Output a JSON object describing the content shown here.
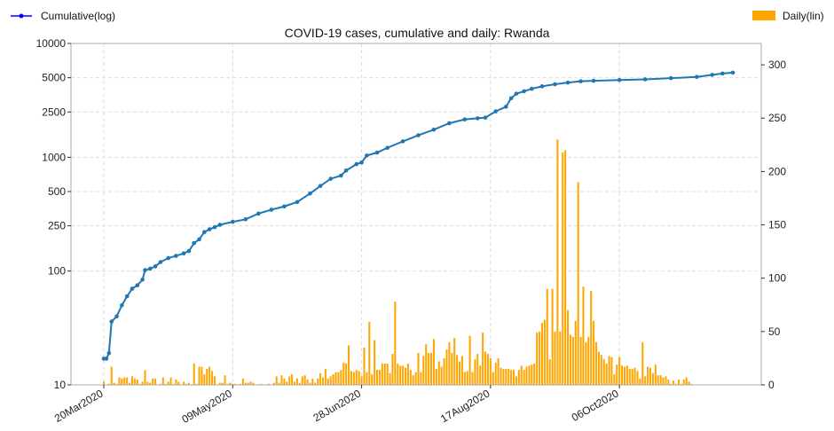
{
  "chart_data": {
    "type": "bar+line",
    "title": "COVID-19 cases, cumulative and daily: Rwanda",
    "legend": {
      "left": "Cumulative(log)",
      "right": "Daily(lin)",
      "placement": "top"
    },
    "colors": {
      "cumulative": "#1f77b4",
      "legend_line": "#0000ff",
      "daily": "#ffa500",
      "grid": "#dddddd"
    },
    "x_range_days": [
      0,
      244
    ],
    "x_tick_labels": [
      "20Mar2020",
      "09May2020",
      "28Jun2020",
      "17Aug2020",
      "06Oct2020"
    ],
    "x_tick_days": [
      0,
      50,
      100,
      150,
      200
    ],
    "y_left": {
      "scale": "log",
      "ylim": [
        10,
        10000
      ],
      "tick_values": [
        10,
        100,
        250,
        500,
        1000,
        2500,
        5000,
        10000
      ],
      "tick_labels": [
        "10",
        "100",
        "250",
        "500",
        "1000",
        "2500",
        "5000",
        "10000"
      ]
    },
    "y_right": {
      "scale": "linear",
      "ylim": [
        0,
        320
      ],
      "tick_values": [
        0,
        50,
        100,
        150,
        200,
        250,
        300
      ],
      "tick_labels": [
        "0",
        "50",
        "100",
        "150",
        "200",
        "250",
        "300"
      ]
    },
    "cumulative_points": [
      [
        0,
        17
      ],
      [
        1,
        17
      ],
      [
        2,
        19
      ],
      [
        3,
        36
      ],
      [
        5,
        40
      ],
      [
        7,
        50
      ],
      [
        9,
        60
      ],
      [
        11,
        70
      ],
      [
        13,
        75
      ],
      [
        15,
        84
      ],
      [
        16,
        102
      ],
      [
        18,
        105
      ],
      [
        20,
        110
      ],
      [
        22,
        120
      ],
      [
        25,
        130
      ],
      [
        28,
        136
      ],
      [
        31,
        143
      ],
      [
        33,
        150
      ],
      [
        35,
        176
      ],
      [
        37,
        190
      ],
      [
        39,
        220
      ],
      [
        41,
        233
      ],
      [
        43,
        243
      ],
      [
        45,
        255
      ],
      [
        50,
        271
      ],
      [
        55,
        285
      ],
      [
        60,
        320
      ],
      [
        65,
        346
      ],
      [
        70,
        370
      ],
      [
        75,
        404
      ],
      [
        80,
        480
      ],
      [
        84,
        560
      ],
      [
        88,
        647
      ],
      [
        92,
        690
      ],
      [
        94,
        765
      ],
      [
        98,
        870
      ],
      [
        100,
        900
      ],
      [
        102,
        1035
      ],
      [
        106,
        1100
      ],
      [
        110,
        1210
      ],
      [
        116,
        1380
      ],
      [
        122,
        1560
      ],
      [
        128,
        1750
      ],
      [
        134,
        1990
      ],
      [
        140,
        2150
      ],
      [
        145,
        2200
      ],
      [
        148,
        2230
      ],
      [
        152,
        2530
      ],
      [
        156,
        2780
      ],
      [
        158,
        3300
      ],
      [
        160,
        3620
      ],
      [
        163,
        3800
      ],
      [
        166,
        4000
      ],
      [
        170,
        4200
      ],
      [
        175,
        4380
      ],
      [
        180,
        4530
      ],
      [
        185,
        4650
      ],
      [
        190,
        4700
      ],
      [
        200,
        4770
      ],
      [
        210,
        4840
      ],
      [
        220,
        4960
      ],
      [
        230,
        5080
      ],
      [
        236,
        5300
      ],
      [
        240,
        5440
      ],
      [
        244,
        5540
      ]
    ],
    "daily_values": [
      3,
      0,
      1,
      17,
      2,
      1,
      7,
      6,
      7,
      7,
      2,
      8,
      6,
      5,
      1,
      3,
      14,
      3,
      2,
      6,
      6,
      0,
      1,
      7,
      1,
      3,
      7,
      1,
      5,
      3,
      0,
      3,
      1,
      2,
      0,
      20,
      1,
      17,
      17,
      10,
      15,
      17,
      13,
      8,
      0,
      2,
      2,
      9,
      1,
      2,
      1,
      1,
      0,
      1,
      6,
      2,
      2,
      3,
      2,
      0,
      0,
      1,
      0,
      0,
      1,
      0,
      2,
      8,
      2,
      9,
      6,
      3,
      8,
      10,
      3,
      6,
      2,
      8,
      9,
      5,
      2,
      6,
      2,
      6,
      11,
      7,
      15,
      6,
      8,
      10,
      12,
      12,
      14,
      21,
      20,
      37,
      13,
      12,
      14,
      13,
      8,
      35,
      12,
      59,
      10,
      42,
      14,
      14,
      20,
      20,
      20,
      11,
      29,
      78,
      20,
      18,
      18,
      16,
      20,
      14,
      9,
      12,
      30,
      12,
      27,
      38,
      30,
      30,
      43,
      15,
      22,
      17,
      25,
      33,
      40,
      30,
      44,
      28,
      22,
      27,
      12,
      13,
      46,
      12,
      24,
      29,
      18,
      49,
      31,
      29,
      25,
      12,
      21,
      25,
      16,
      15,
      15,
      15,
      14,
      14,
      8,
      14,
      18,
      14,
      17,
      18,
      19,
      20,
      49,
      50,
      58,
      61,
      90,
      24,
      90,
      50,
      230,
      50,
      218,
      220,
      70,
      47,
      45,
      60,
      190,
      45,
      92,
      40,
      45,
      88,
      60,
      40,
      31,
      28,
      24,
      20,
      27,
      26,
      10,
      19,
      26,
      18,
      17,
      18,
      15,
      15,
      16,
      13,
      6,
      40,
      8,
      17,
      16,
      11,
      19,
      9,
      9,
      7,
      8,
      5,
      1,
      4,
      1,
      5,
      1,
      5,
      7,
      3,
      1
    ]
  }
}
